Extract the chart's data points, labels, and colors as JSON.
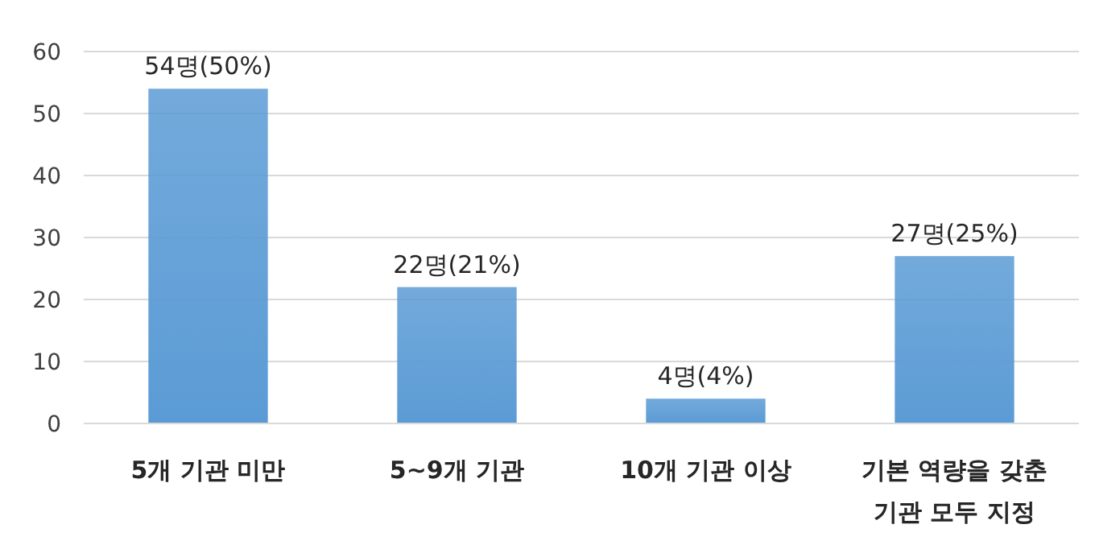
{
  "chart_data": {
    "type": "bar",
    "categories": [
      "5개 기관 미만",
      "5~9개 기관",
      "10개 기관 이상",
      "기본 역량을 갖춘 기관 모두 지정"
    ],
    "values": [
      54,
      22,
      4,
      27
    ],
    "value_labels": [
      "54명(50%)",
      "22명(21%)",
      "4명(4%)",
      "27명(25%)"
    ],
    "color": "#5b9bd5",
    "ylim": [
      0,
      60
    ],
    "yticks": [
      0,
      10,
      20,
      30,
      40,
      50,
      60
    ],
    "grid": "y"
  }
}
